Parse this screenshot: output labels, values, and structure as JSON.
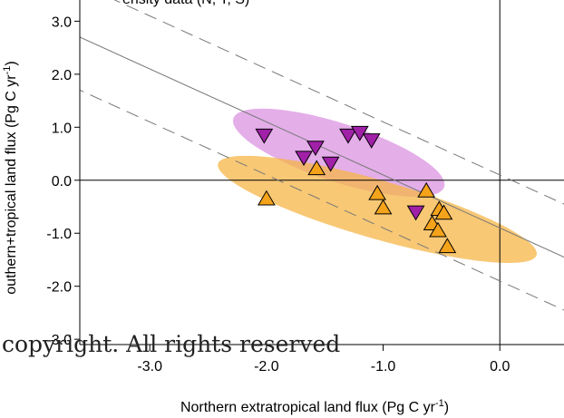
{
  "chart_data": {
    "type": "scatter",
    "title": "",
    "top_label": "ensity data (N, T, S)",
    "xlabel_main": "Northern extratropical land flux (Pg C yr",
    "xlabel_sup": "-1",
    "xlabel_end": ")",
    "ylabel_main": "outhern+tropical land flux (Pg C yr",
    "ylabel_sup": "-1",
    "ylabel_end": ")",
    "xlim": [
      -3.6,
      0.55
    ],
    "ylim": [
      -3.1,
      3.4
    ],
    "x_ticks": [
      -3.0,
      -2.0,
      -1.0,
      0.0
    ],
    "x_tick_labels": [
      "-3.0",
      "-2.0",
      "-1.0",
      "0.0"
    ],
    "y_ticks": [
      3.0,
      2.0,
      1.0,
      0.0,
      -1.0,
      -2.0,
      -3.0
    ],
    "y_tick_labels": [
      "3.0",
      "2.0",
      "1.0",
      "0.0",
      "-1.0",
      "-2.0",
      "-3.0"
    ],
    "reference_lines": [
      {
        "style": "solid",
        "slope": -1,
        "intercept": -0.9,
        "color": "#777777"
      },
      {
        "style": "dashed",
        "slope": -1,
        "intercept": 0.1,
        "color": "#777777"
      },
      {
        "style": "dashed",
        "slope": -1,
        "intercept": -1.9,
        "color": "#777777"
      }
    ],
    "ellipses": [
      {
        "center": [
          -1.38,
          0.52
        ],
        "rx_data": 0.95,
        "ry_data": 0.55,
        "angle_deg": 18,
        "color": "#d98be0",
        "opacity": 0.7
      },
      {
        "center": [
          -1.05,
          -0.55
        ],
        "rx_data": 1.42,
        "ry_data": 0.55,
        "angle_deg": 16,
        "color": "#f5b547",
        "opacity": 0.75
      }
    ],
    "series": [
      {
        "name": "",
        "marker": "triangle-down",
        "color": "#a020a8",
        "x": [
          -2.02,
          -1.58,
          -1.68,
          -1.45,
          -1.3,
          -1.2,
          -1.1,
          -0.72
        ],
        "y": [
          0.85,
          0.62,
          0.43,
          0.32,
          0.85,
          0.9,
          0.76,
          -0.6
        ]
      },
      {
        "name": "",
        "marker": "triangle-up",
        "color": "#f5a31a",
        "x": [
          -2.0,
          -1.57,
          -1.05,
          -1.0,
          -0.63,
          -0.58,
          -0.52,
          -0.48,
          -0.53,
          -0.45
        ],
        "y": [
          -0.35,
          0.22,
          -0.25,
          -0.52,
          -0.2,
          -0.82,
          -0.55,
          -0.62,
          -0.95,
          -1.25
        ]
      }
    ]
  },
  "watermark": "copyright. All rights reserved"
}
